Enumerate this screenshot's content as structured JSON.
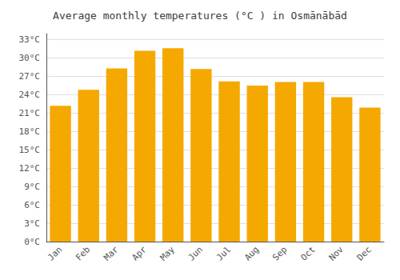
{
  "chart_data": {
    "type": "bar",
    "title": "Average monthly temperatures (°C ) in Osmānābād",
    "categories": [
      "Jan",
      "Feb",
      "Mar",
      "Apr",
      "May",
      "Jun",
      "Jul",
      "Aug",
      "Sep",
      "Oct",
      "Nov",
      "Dec"
    ],
    "values": [
      22.2,
      24.8,
      28.3,
      31.2,
      31.6,
      28.2,
      26.2,
      25.5,
      26.1,
      26.1,
      23.6,
      21.9
    ],
    "color": "#F5A800",
    "ylim": [
      0,
      34
    ],
    "yticks": [
      {
        "value": 0,
        "label": "0°C"
      },
      {
        "value": 3,
        "label": "3°C"
      },
      {
        "value": 6,
        "label": "6°C"
      },
      {
        "value": 9,
        "label": "9°C"
      },
      {
        "value": 12,
        "label": "12°C"
      },
      {
        "value": 15,
        "label": "15°C"
      },
      {
        "value": 18,
        "label": "18°C"
      },
      {
        "value": 21,
        "label": "21°C"
      },
      {
        "value": 24,
        "label": "24°C"
      },
      {
        "value": 27,
        "label": "27°C"
      },
      {
        "value": 30,
        "label": "30°C"
      },
      {
        "value": 33,
        "label": "33°C"
      }
    ],
    "grid": true
  }
}
